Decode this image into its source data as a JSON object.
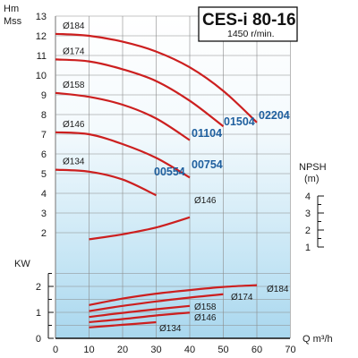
{
  "chart_data": {
    "type": "line",
    "title": "CES-i 80-16",
    "subtitle": "1450 r/min.",
    "head_axis": {
      "label_line1": "Hm",
      "label_line2": "Mss",
      "ylim": [
        0,
        13
      ],
      "ticks": [
        "2",
        "3",
        "4",
        "5",
        "6",
        "7",
        "8",
        "9",
        "10",
        "11",
        "12",
        "13"
      ]
    },
    "x_axis": {
      "label": "Q m³/h",
      "xlim": [
        0,
        70
      ],
      "ticks": [
        "0",
        "10",
        "20",
        "30",
        "40",
        "50",
        "60",
        "70"
      ]
    },
    "power_axis": {
      "label": "KW",
      "ylim": [
        0,
        2.5
      ],
      "ticks": [
        "0",
        "1",
        "2"
      ]
    },
    "npsh_axis": {
      "label_line1": "NPSH",
      "label_line2": "(m)",
      "ylim": [
        1,
        4
      ],
      "ticks": [
        "1",
        "2",
        "3",
        "4"
      ]
    },
    "head_curves": [
      {
        "impeller": "Ø184",
        "model": "02204",
        "x": [
          0,
          10,
          20,
          30,
          40,
          50,
          60
        ],
        "y": [
          12.1,
          12.0,
          11.7,
          11.2,
          10.4,
          9.2,
          7.6
        ]
      },
      {
        "impeller": "Ø174",
        "model": "01504",
        "x": [
          0,
          10,
          20,
          30,
          40,
          50
        ],
        "y": [
          10.8,
          10.7,
          10.3,
          9.7,
          8.7,
          7.4
        ]
      },
      {
        "impeller": "Ø158",
        "model": "01104",
        "x": [
          0,
          10,
          20,
          30,
          40
        ],
        "y": [
          9.1,
          8.9,
          8.5,
          7.8,
          6.7
        ]
      },
      {
        "impeller": "Ø146",
        "model": "00754",
        "x": [
          0,
          10,
          20,
          30,
          40
        ],
        "y": [
          7.1,
          7.0,
          6.5,
          5.8,
          4.8
        ]
      },
      {
        "impeller": "Ø134",
        "model": "00554",
        "x": [
          0,
          10,
          20,
          30
        ],
        "y": [
          5.2,
          5.1,
          4.7,
          3.9
        ]
      }
    ],
    "npsh_curve": {
      "impeller": "Ø146",
      "x": [
        10,
        20,
        30,
        40
      ],
      "y": [
        1.45,
        1.75,
        2.15,
        2.75
      ]
    },
    "power_curves": [
      {
        "impeller": "Ø184",
        "x": [
          10,
          20,
          30,
          40,
          50,
          60
        ],
        "y": [
          1.28,
          1.53,
          1.72,
          1.86,
          1.98,
          2.05
        ]
      },
      {
        "impeller": "Ø174",
        "x": [
          10,
          20,
          30,
          40,
          50
        ],
        "y": [
          1.05,
          1.25,
          1.42,
          1.57,
          1.7
        ]
      },
      {
        "impeller": "Ø158",
        "x": [
          10,
          20,
          30,
          40
        ],
        "y": [
          0.82,
          0.98,
          1.12,
          1.25
        ]
      },
      {
        "impeller": "Ø146",
        "x": [
          10,
          20,
          30,
          40
        ],
        "y": [
          0.62,
          0.74,
          0.88,
          0.99
        ]
      },
      {
        "impeller": "Ø134",
        "x": [
          10,
          20,
          30
        ],
        "y": [
          0.42,
          0.52,
          0.62
        ]
      }
    ],
    "grid": true,
    "colors": {
      "curve": "#cc1f1f",
      "model_label": "#1f5f9e",
      "grid": "#8a8a8a"
    }
  }
}
